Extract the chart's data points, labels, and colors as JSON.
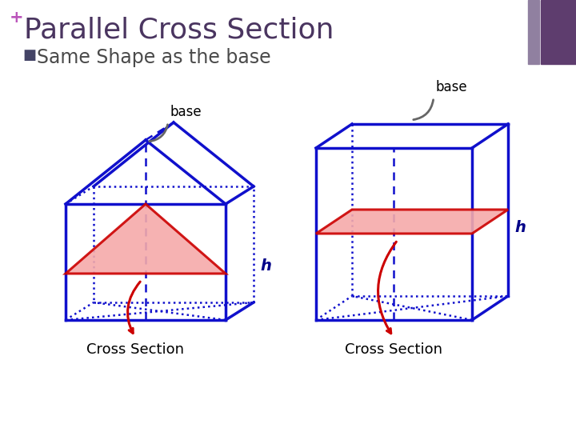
{
  "title": "Parallel Cross Section",
  "subtitle": "Same Shape as the base",
  "plus_symbol": "+",
  "plus_color": "#bb55bb",
  "title_color": "#4a3560",
  "subtitle_color": "#4a4a4a",
  "bg_color": "#ffffff",
  "blue_color": "#1010cc",
  "red_color": "#cc0000",
  "red_fill": "#f5aaaa",
  "dashed_color": "#1010cc",
  "arrow_color": "#cc0000",
  "bracket_color": "#666666",
  "base_label": "base",
  "h_label": "h",
  "cross_section_label": "Cross Section",
  "purple_rect_color": "#5e3d6e",
  "purple_rect_light": "#9080a0",
  "bullet_color": "#444466"
}
